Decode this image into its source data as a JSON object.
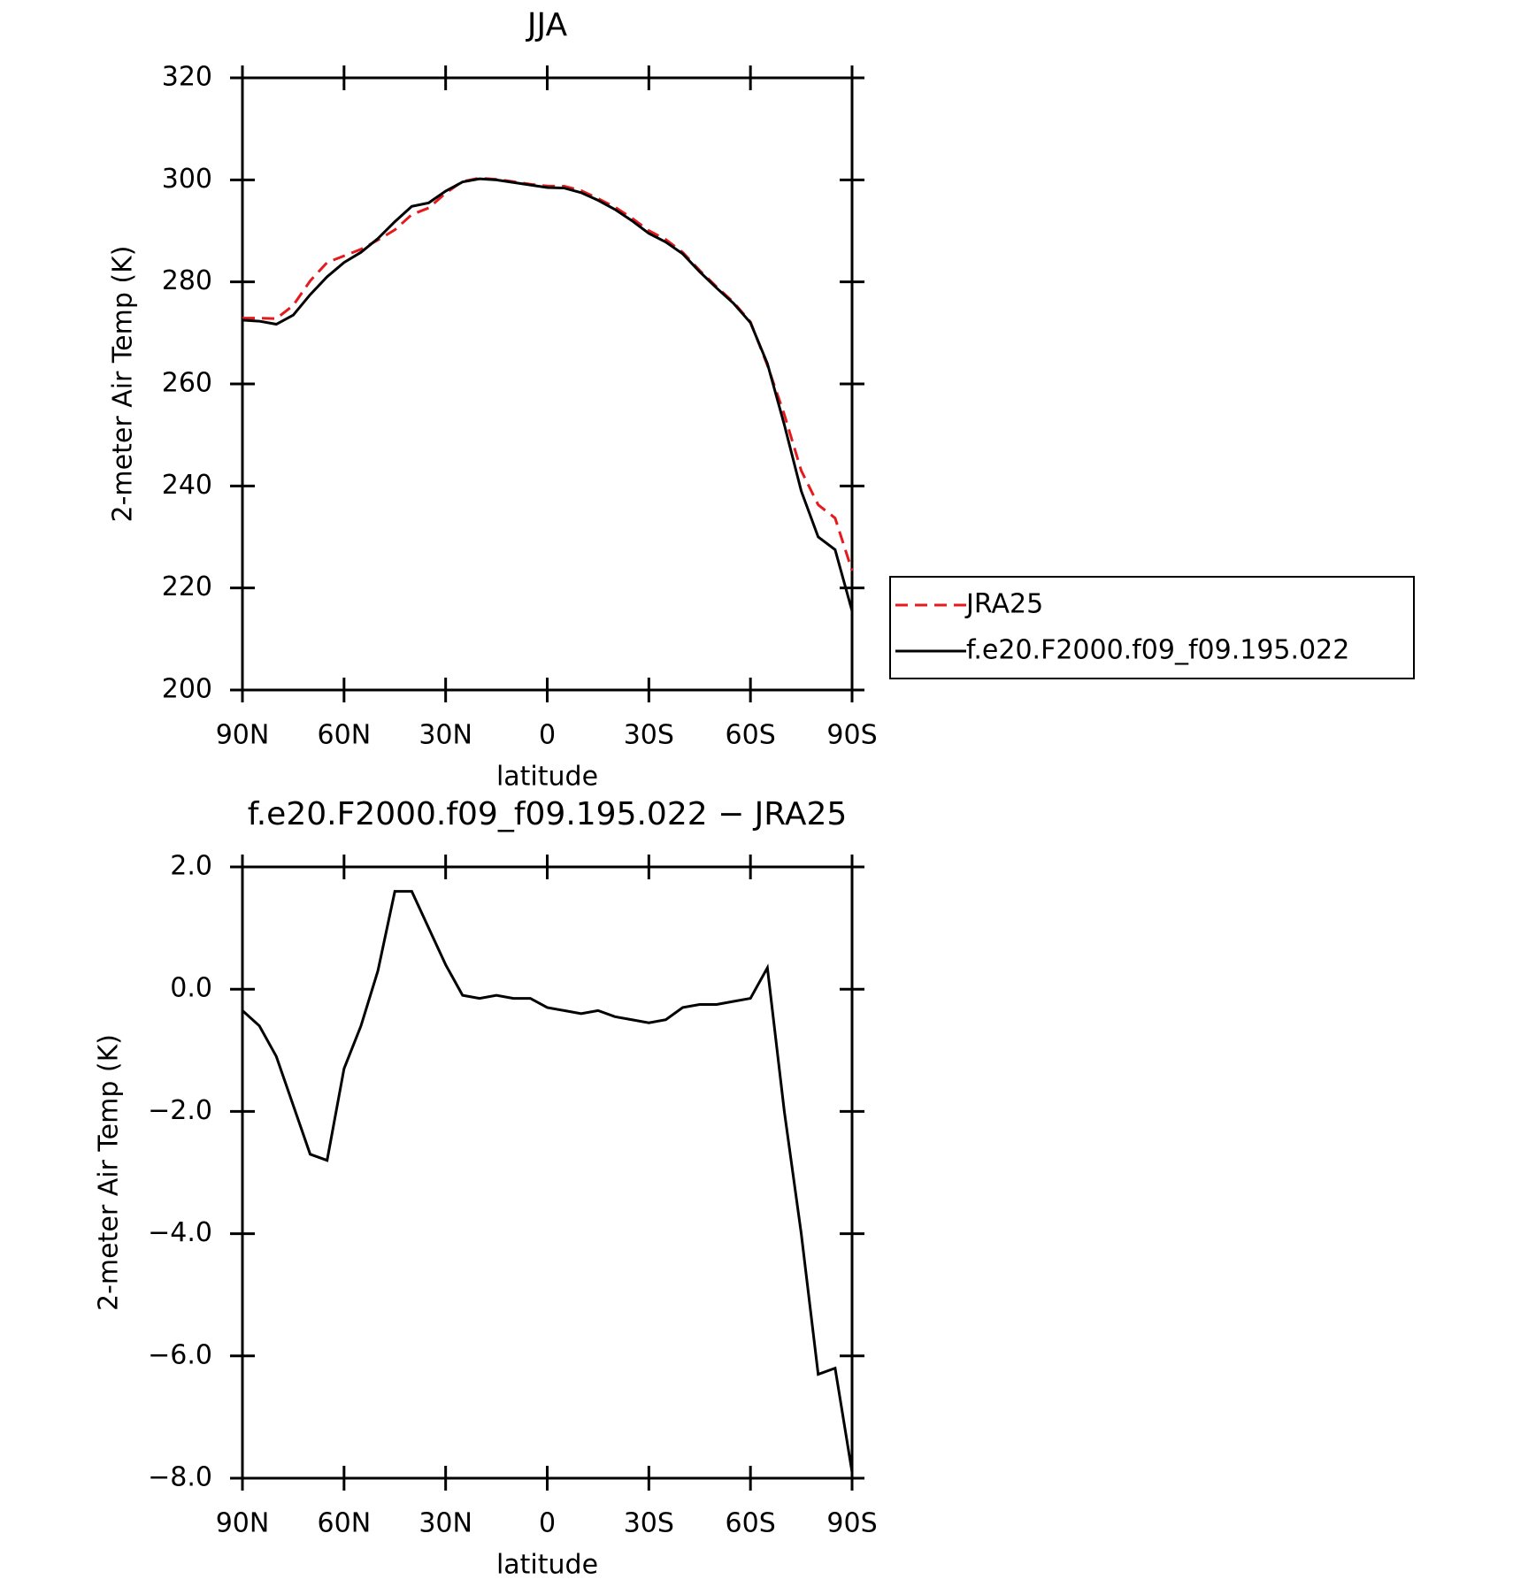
{
  "chart_data": [
    {
      "type": "line",
      "title": "JJA",
      "xlabel": "latitude",
      "ylabel": "2-meter Air Temp (K)",
      "x": [
        90,
        85,
        80,
        75,
        70,
        65,
        60,
        55,
        50,
        45,
        40,
        35,
        30,
        25,
        20,
        15,
        10,
        5,
        0,
        -5,
        -10,
        -15,
        -20,
        -25,
        -30,
        -35,
        -40,
        -45,
        -50,
        -55,
        -60,
        -65,
        -70,
        -75,
        -80,
        -85,
        -90
      ],
      "series": [
        {
          "name": "JRA25",
          "color": "#e41a1c",
          "dashed": true,
          "values": [
            272.9,
            272.9,
            272.8,
            275.4,
            280.2,
            283.8,
            285.1,
            286.4,
            288.2,
            290.2,
            293.2,
            294.5,
            297.4,
            299.7,
            300.35,
            300.1,
            299.65,
            299.15,
            298.8,
            298.75,
            297.9,
            296.35,
            294.65,
            292.5,
            290.05,
            288.3,
            285.8,
            282.25,
            279.05,
            276,
            272.15,
            263.65,
            254,
            243,
            236.3,
            233.7,
            223.4
          ]
        },
        {
          "name": "f.e20.F2000.f09_f09.195.022",
          "color": "#000000",
          "dashed": false,
          "values": [
            272.5,
            272.3,
            271.7,
            273.5,
            277.5,
            281,
            283.8,
            285.8,
            288.5,
            291.8,
            294.8,
            295.5,
            297.8,
            299.6,
            300.2,
            300,
            299.5,
            299,
            298.5,
            298.4,
            297.5,
            296,
            294.2,
            292,
            289.5,
            287.8,
            285.5,
            282,
            278.8,
            275.8,
            272,
            264,
            252,
            239,
            230,
            227.5,
            215.5
          ]
        }
      ],
      "xlim": [
        90,
        -90
      ],
      "xticks": [
        {
          "value": 90,
          "label": "90N"
        },
        {
          "value": 60,
          "label": "60N"
        },
        {
          "value": 30,
          "label": "30N"
        },
        0,
        {
          "value": -30,
          "label": "30S"
        },
        {
          "value": -60,
          "label": "60S"
        },
        {
          "value": -90,
          "label": "90S"
        }
      ],
      "ylim": [
        200,
        320
      ],
      "yticks": [
        200,
        220,
        240,
        260,
        280,
        300,
        320
      ],
      "legend": "right"
    },
    {
      "type": "line",
      "title": "f.e20.F2000.f09_f09.195.022 − JRA25",
      "xlabel": "latitude",
      "ylabel": "2-meter Air Temp (K)",
      "x": [
        90,
        85,
        80,
        75,
        70,
        65,
        60,
        55,
        50,
        45,
        40,
        35,
        30,
        25,
        20,
        15,
        10,
        5,
        0,
        -5,
        -10,
        -15,
        -20,
        -25,
        -30,
        -35,
        -40,
        -45,
        -50,
        -55,
        -60,
        -65,
        -70,
        -75,
        -80,
        -85,
        -90
      ],
      "color": "#000000",
      "values": [
        -0.35,
        -0.6,
        -1.1,
        -1.9,
        -2.7,
        -2.8,
        -1.3,
        -0.6,
        0.3,
        1.6,
        1.6,
        1.0,
        0.4,
        -0.1,
        -0.15,
        -0.1,
        -0.15,
        -0.15,
        -0.3,
        -0.35,
        -0.4,
        -0.35,
        -0.45,
        -0.5,
        -0.55,
        -0.5,
        -0.3,
        -0.25,
        -0.25,
        -0.2,
        -0.15,
        0.35,
        -2.0,
        -4.0,
        -6.3,
        -6.2,
        -7.9
      ],
      "xlim": [
        90,
        -90
      ],
      "xticks": [
        {
          "value": 90,
          "label": "90N"
        },
        {
          "value": 60,
          "label": "60N"
        },
        {
          "value": 30,
          "label": "30N"
        },
        0,
        {
          "value": -30,
          "label": "30S"
        },
        {
          "value": -60,
          "label": "60S"
        },
        {
          "value": -90,
          "label": "90S"
        }
      ],
      "ylim": [
        -8,
        2
      ],
      "yticks": [
        {
          "value": -8,
          "label": "−8.0"
        },
        {
          "value": -6,
          "label": "−6.0"
        },
        {
          "value": -4,
          "label": "−4.0"
        },
        {
          "value": -2,
          "label": "−2.0"
        },
        {
          "value": 0,
          "label": "0.0"
        },
        {
          "value": 2,
          "label": "2.0"
        }
      ]
    }
  ]
}
